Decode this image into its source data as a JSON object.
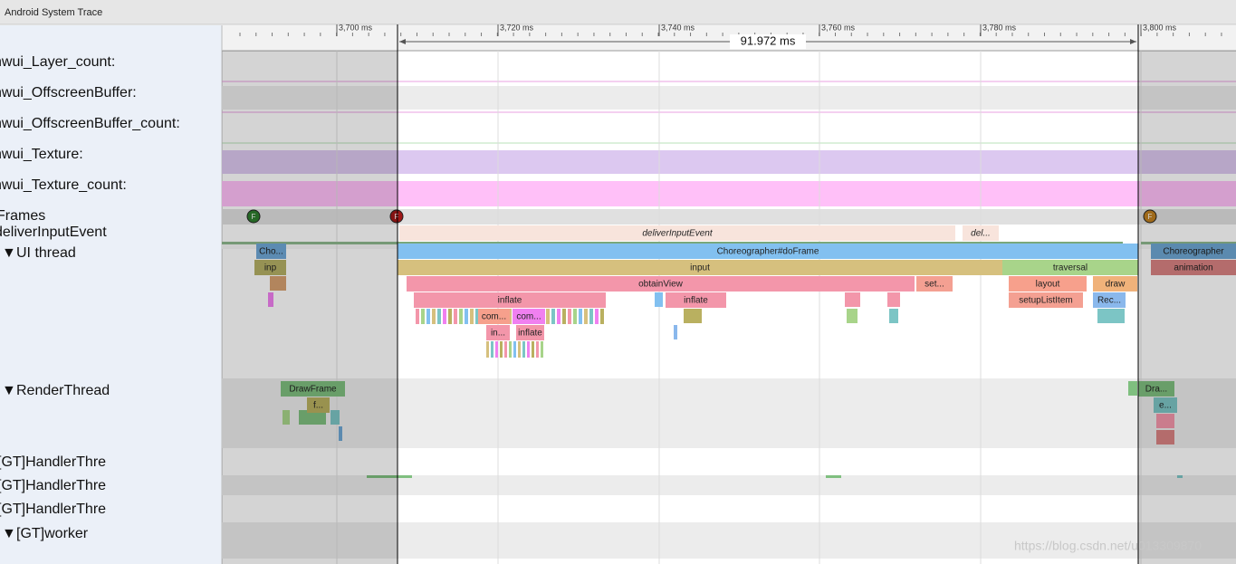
{
  "header": {
    "title": "Android System Trace"
  },
  "ruler": {
    "ticks": [
      "3,700 ms",
      "3,720 ms",
      "3,740 ms",
      "3,760 ms",
      "3,780 ms",
      "3,800 ms"
    ],
    "selection": "91.972 ms"
  },
  "tracks": [
    "hwui_Layer_count:",
    "hwui_OffscreenBuffer:",
    "hwui_OffscreenBuffer_count:",
    "hwui_Texture:",
    "hwui_Texture_count:",
    "Frames",
    "deliverInputEvent",
    "UI thread",
    "RenderThread",
    "[GT]HandlerThre",
    "[GT]HandlerThre",
    "[GT]HandlerThre",
    "[GT]worker"
  ],
  "frames": [
    "F",
    "F",
    "F"
  ],
  "slices": [
    "deliverInputEvent",
    "del...",
    "Cho...",
    "Choreographer#doFrame",
    "Choreographer",
    "inp",
    "input",
    "traversal",
    "animation",
    "obtainView",
    "set...",
    "layout",
    "draw",
    "inflate",
    "inflate",
    "setupListItem",
    "Rec...",
    "com...",
    "com...",
    "in...",
    "inflate",
    "DrawFrame",
    "f...",
    "Dra...",
    "e..."
  ],
  "watermark": "https://blog.csdn.net/u013309870"
}
